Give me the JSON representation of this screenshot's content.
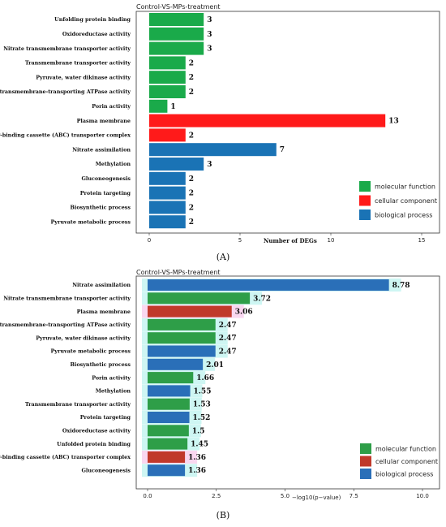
{
  "chart_data": [
    {
      "type": "bar",
      "orientation": "horizontal",
      "panel_label": "(A)",
      "title": "Control-VS-MPs-treatment",
      "xlabel": "Number of DEGs",
      "xlim": [
        0,
        16
      ],
      "xticks": [
        "0",
        "5",
        "10",
        "15"
      ],
      "categories": [
        "Unfolding protein binding",
        "Oxidoreductase activity",
        "Nitrate transmembrane transporter activity",
        "Transmembrane transporter activity",
        "Pyruvate, water dikinase activity",
        "Nitrate transmembrane-transporting ATPase activity",
        "Porin activity",
        "Plasma membrane",
        "ATP-binding cassette (ABC) transporter complex",
        "Nitrate assimilation",
        "Methylation",
        "Gluconeogenesis",
        "Protein targeting",
        "Biosynthetic process",
        "Pyruvate metabolic process"
      ],
      "values": [
        3,
        3,
        3,
        2,
        2,
        2,
        1,
        13,
        2,
        7,
        3,
        2,
        2,
        2,
        2
      ],
      "value_labels": [
        "3",
        "3",
        "3",
        "2",
        "2",
        "2",
        "1",
        "13",
        "2",
        "7",
        "3",
        "2",
        "2",
        "2",
        "2"
      ],
      "groups": [
        "mf",
        "mf",
        "mf",
        "mf",
        "mf",
        "mf",
        "mf",
        "cc",
        "cc",
        "bp",
        "bp",
        "bp",
        "bp",
        "bp",
        "bp"
      ],
      "legend": [
        {
          "key": "mf",
          "label": "molecular function",
          "color": "#1aaa4a"
        },
        {
          "key": "cc",
          "label": "cellular component",
          "color": "#ff1a1a"
        },
        {
          "key": "bp",
          "label": "biological process",
          "color": "#1a73b5"
        }
      ],
      "legend_position": "bottom-right",
      "grid": false
    },
    {
      "type": "bar",
      "orientation": "horizontal",
      "panel_label": "(B)",
      "title": "Control-VS-MPs-treatment",
      "xlabel": "−log10(p−value)",
      "xlim": [
        0,
        10.8
      ],
      "xticks": [
        "0.0",
        "2.5",
        "5.0",
        "7.5",
        "10.0"
      ],
      "categories": [
        "Nitrate assimilation",
        "Nitrate transmembrane transporter activity",
        "Plasma membrane",
        "Nitrate transmembrane-transporting ATPase activity",
        "Pyruvate, water dikinase activity",
        "Pyruvate metabolic process",
        "Biosynthetic process",
        "Porin activity",
        "Methylation",
        "Transmembrane transporter activity",
        "Protein targeting",
        "Oxidoreductase activity",
        "Unfolded protein binding",
        "ATP-binding cassette (ABC) transporter complex",
        "Gluconeogenesis"
      ],
      "values": [
        8.78,
        3.72,
        3.06,
        2.47,
        2.47,
        2.47,
        2.01,
        1.66,
        1.55,
        1.53,
        1.52,
        1.5,
        1.45,
        1.36,
        1.36
      ],
      "value_labels": [
        "8.78",
        "3.72",
        "3.06",
        "2.47",
        "2.47",
        "2.47",
        "2.01",
        "1.66",
        "1.55",
        "1.53",
        "1.52",
        "1.5",
        "1.45",
        "1.36",
        "1.36"
      ],
      "groups": [
        "bp",
        "mf",
        "cc",
        "mf",
        "mf",
        "bp",
        "bp",
        "mf",
        "bp",
        "mf",
        "bp",
        "mf",
        "mf",
        "cc",
        "bp"
      ],
      "legend": [
        {
          "key": "mf",
          "label": "molecular function",
          "color": "#2e9e48"
        },
        {
          "key": "cc",
          "label": "cellular component",
          "color": "#c0392b"
        },
        {
          "key": "bp",
          "label": "biological process",
          "color": "#2a6fb8"
        }
      ],
      "legend_position": "bottom-right",
      "grid": false
    }
  ]
}
